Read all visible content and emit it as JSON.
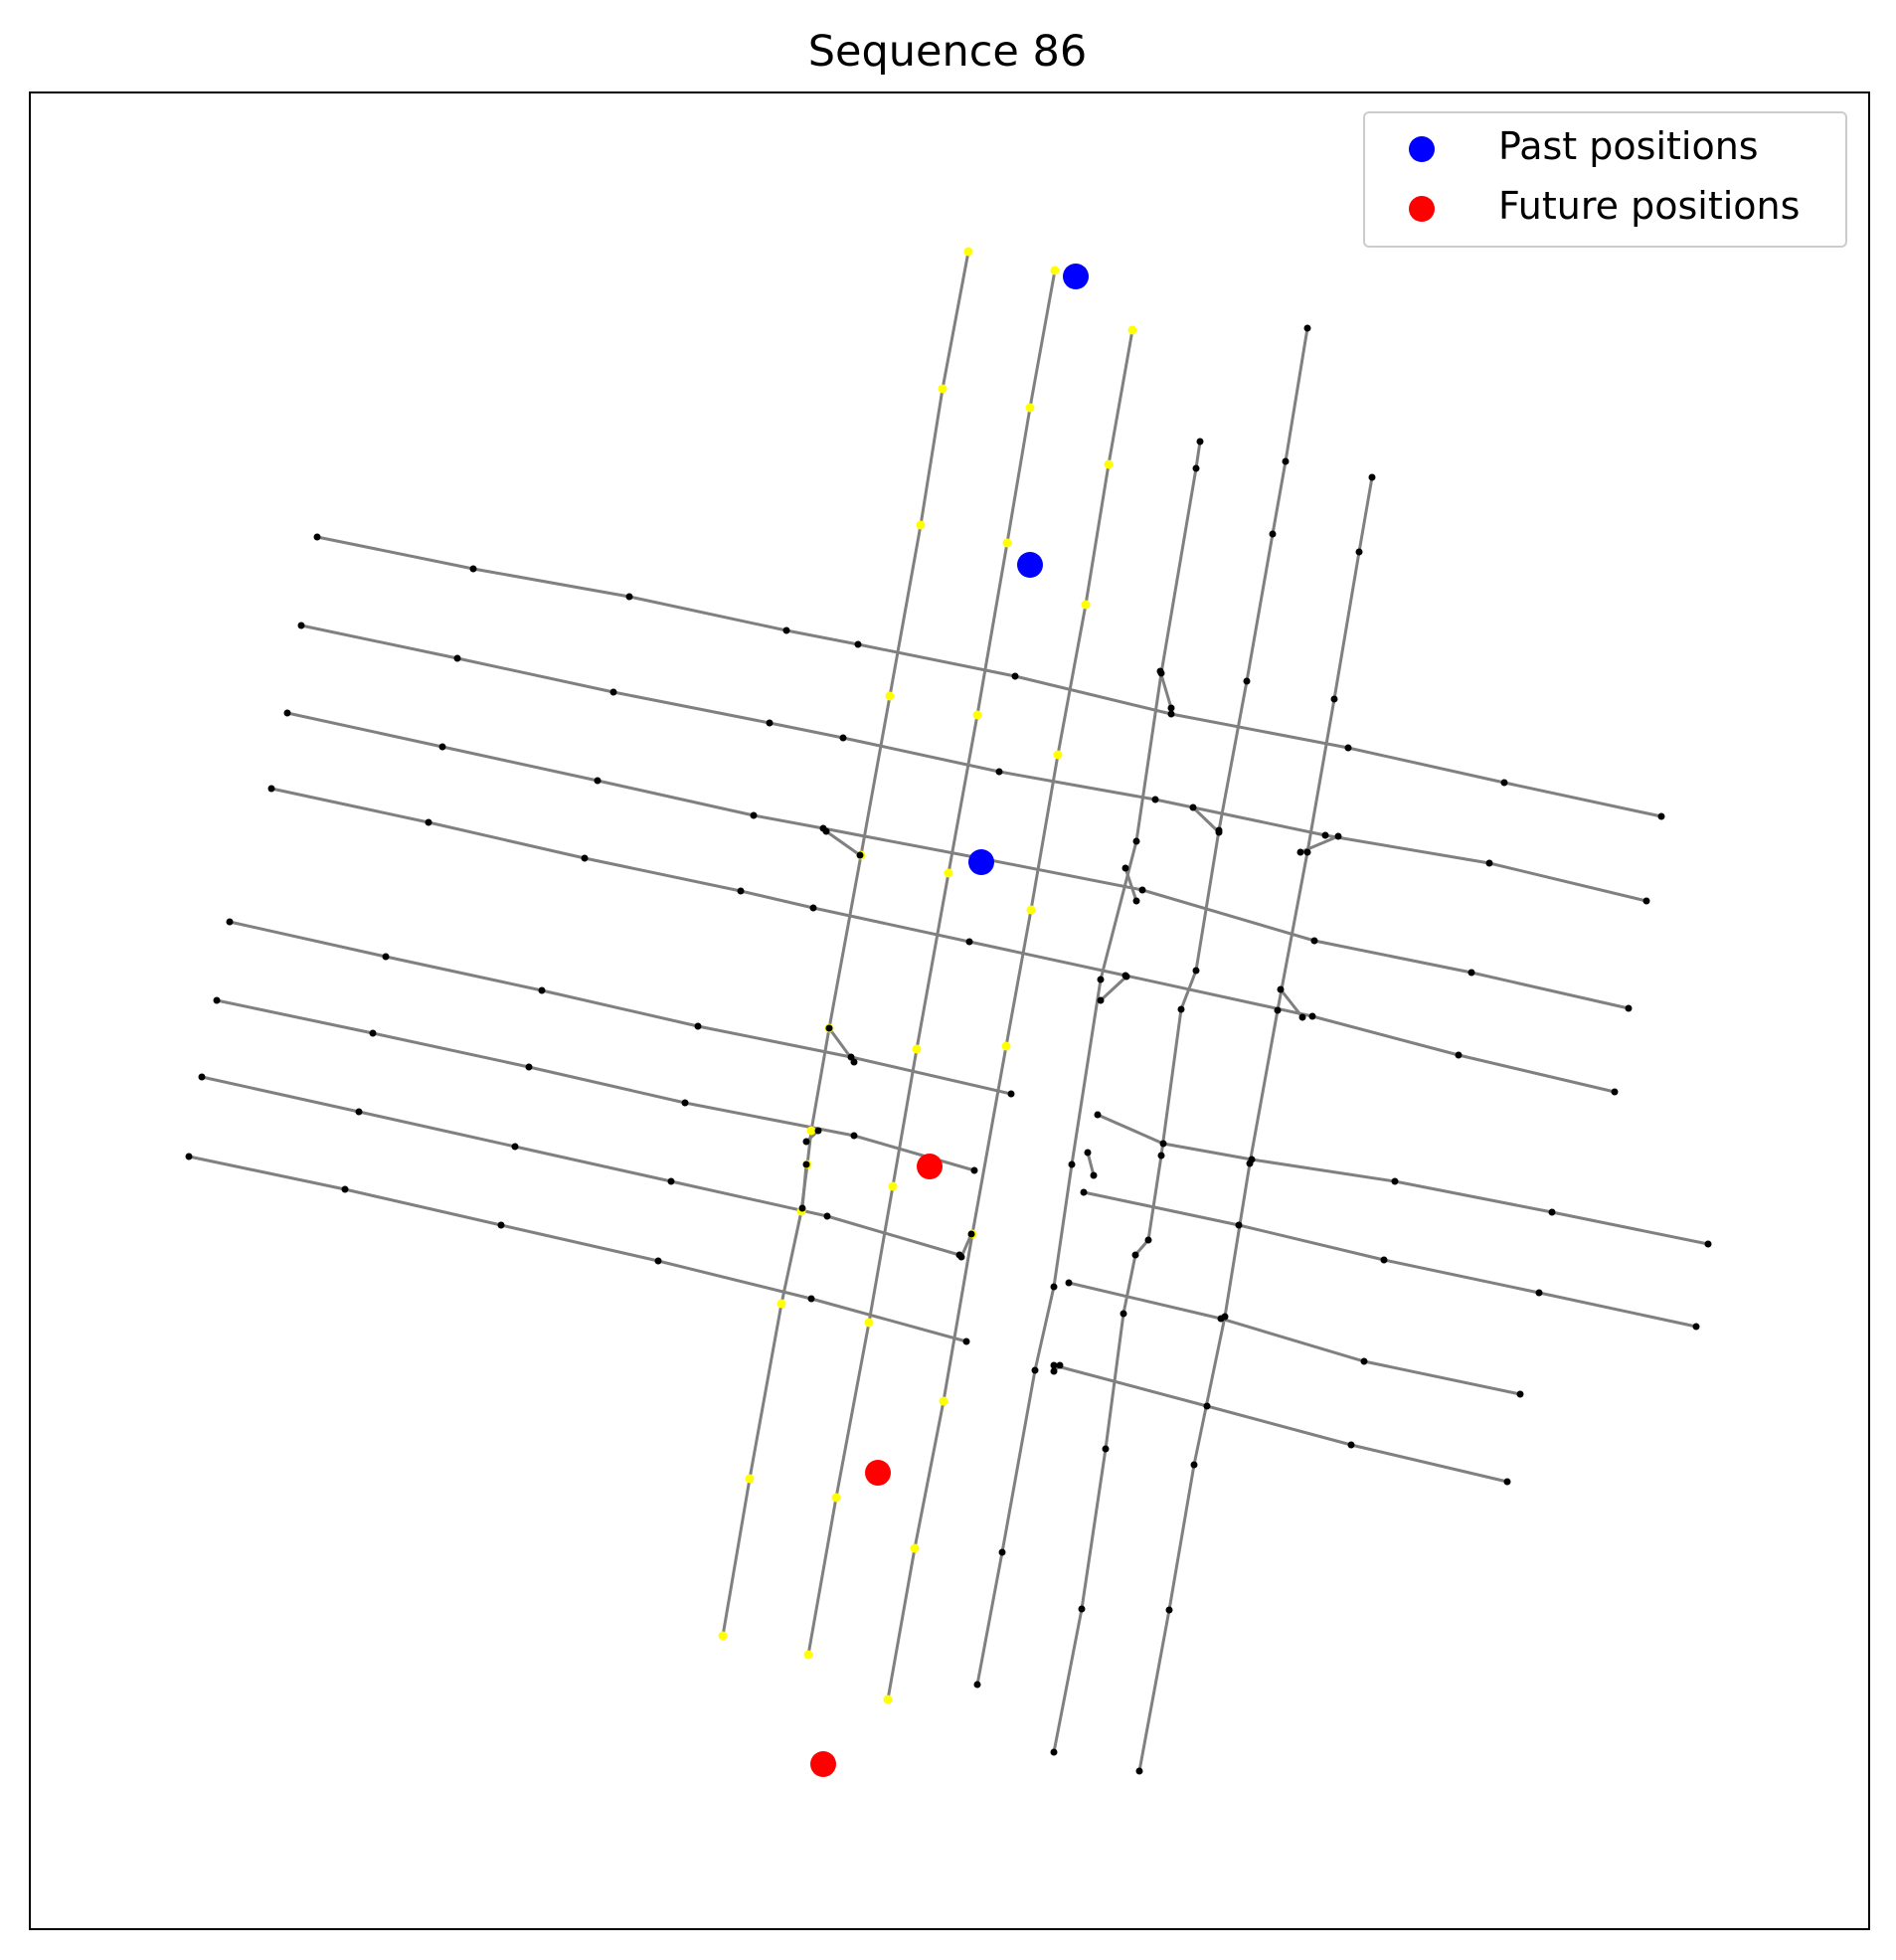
{
  "chart_data": {
    "type": "scatter",
    "title": "Sequence 86",
    "xlabel": "",
    "ylabel": "",
    "grid": false,
    "ticks_visible": false,
    "legend": {
      "placement": "top-right",
      "entries": [
        "Past positions",
        "Future positions"
      ]
    },
    "colors": {
      "past": "#0000ff",
      "future": "#ff0000",
      "lane": "#808080",
      "node": "#000000",
      "highlight_node": "#ffff00",
      "frame": "#000000"
    },
    "series": [
      {
        "name": "Past positions",
        "color": "#0000ff",
        "points": [
          [
            1082,
            278
          ],
          [
            1036,
            568
          ],
          [
            987,
            867
          ]
        ]
      },
      {
        "name": "Future positions",
        "color": "#ff0000",
        "points": [
          [
            935,
            1173
          ],
          [
            883,
            1481
          ],
          [
            828,
            1774
          ]
        ]
      }
    ],
    "lanes": [
      {
        "highlight": true,
        "points": [
          [
            974,
            253
          ],
          [
            948,
            391
          ],
          [
            926,
            528
          ],
          [
            895,
            700
          ],
          [
            866,
            860
          ],
          [
            834,
            1034
          ],
          [
            816,
            1137
          ],
          [
            812,
            1171
          ],
          [
            806,
            1218
          ],
          [
            786,
            1311
          ],
          [
            754,
            1487
          ],
          [
            727,
            1645
          ]
        ]
      },
      {
        "highlight": true,
        "points": [
          [
            1061,
            272
          ],
          [
            1036,
            410
          ],
          [
            1013,
            546
          ],
          [
            983,
            719
          ],
          [
            954,
            878
          ],
          [
            922,
            1055
          ],
          [
            898,
            1193
          ],
          [
            874,
            1330
          ],
          [
            841,
            1506
          ],
          [
            813,
            1664
          ]
        ]
      },
      {
        "highlight": true,
        "points": [
          [
            1139,
            332
          ],
          [
            1115,
            467
          ],
          [
            1092,
            608
          ],
          [
            1064,
            759
          ],
          [
            1037,
            915
          ],
          [
            1012,
            1052
          ],
          [
            978,
            1241
          ],
          [
            949,
            1409
          ],
          [
            920,
            1557
          ],
          [
            893,
            1709
          ]
        ]
      },
      {
        "points": [
          [
            1207,
            444
          ],
          [
            1203,
            471
          ],
          [
            1168,
            677
          ],
          [
            1143,
            846
          ],
          [
            1107,
            985
          ],
          [
            1078,
            1171
          ],
          [
            1060,
            1294
          ],
          [
            1041,
            1378
          ],
          [
            1008,
            1561
          ],
          [
            983,
            1694
          ]
        ]
      },
      {
        "points": [
          [
            1315,
            330
          ],
          [
            1293,
            464
          ],
          [
            1280,
            537
          ],
          [
            1254,
            685
          ],
          [
            1226,
            835
          ],
          [
            1203,
            976
          ],
          [
            1188,
            1015
          ],
          [
            1168,
            1162
          ],
          [
            1155,
            1247
          ],
          [
            1142,
            1262
          ],
          [
            1130,
            1321
          ],
          [
            1112,
            1457
          ],
          [
            1088,
            1618
          ],
          [
            1060,
            1762
          ]
        ]
      },
      {
        "points": [
          [
            1380,
            480
          ],
          [
            1367,
            555
          ],
          [
            1342,
            703
          ],
          [
            1315,
            857
          ],
          [
            1285,
            1016
          ],
          [
            1257,
            1170
          ],
          [
            1232,
            1324
          ],
          [
            1201,
            1473
          ],
          [
            1176,
            1619
          ],
          [
            1146,
            1781
          ]
        ]
      },
      {
        "points": [
          [
            319,
            540
          ],
          [
            476,
            572
          ],
          [
            633,
            600
          ],
          [
            791,
            634
          ],
          [
            863,
            648
          ],
          [
            1021,
            680
          ],
          [
            1178,
            718
          ],
          [
            1356,
            752
          ],
          [
            1513,
            787
          ],
          [
            1671,
            821
          ]
        ]
      },
      {
        "points": [
          [
            303,
            629
          ],
          [
            460,
            662
          ],
          [
            617,
            696
          ],
          [
            774,
            727
          ],
          [
            848,
            742
          ],
          [
            1005,
            776
          ],
          [
            1162,
            804
          ],
          [
            1333,
            840
          ],
          [
            1498,
            868
          ],
          [
            1656,
            906
          ]
        ]
      },
      {
        "points": [
          [
            289,
            717
          ],
          [
            445,
            751
          ],
          [
            601,
            785
          ],
          [
            758,
            820
          ],
          [
            828,
            833
          ],
          [
            991,
            864
          ],
          [
            1149,
            895
          ],
          [
            1322,
            946
          ],
          [
            1480,
            978
          ],
          [
            1638,
            1014
          ]
        ]
      },
      {
        "points": [
          [
            273,
            793
          ],
          [
            431,
            827
          ],
          [
            588,
            863
          ],
          [
            745,
            896
          ],
          [
            818,
            913
          ],
          [
            975,
            947
          ],
          [
            1132,
            981
          ],
          [
            1320,
            1022
          ],
          [
            1467,
            1061
          ],
          [
            1624,
            1098
          ]
        ]
      },
      {
        "points": [
          [
            231,
            927
          ],
          [
            388,
            962
          ],
          [
            545,
            996
          ],
          [
            702,
            1032
          ],
          [
            856,
            1063
          ],
          [
            1017,
            1100
          ]
        ]
      },
      {
        "points": [
          [
            218,
            1006
          ],
          [
            375,
            1039
          ],
          [
            532,
            1073
          ],
          [
            689,
            1109
          ],
          [
            859,
            1142
          ],
          [
            980,
            1177
          ]
        ]
      },
      {
        "points": [
          [
            203,
            1083
          ],
          [
            361,
            1118
          ],
          [
            518,
            1153
          ],
          [
            675,
            1188
          ],
          [
            832,
            1223
          ],
          [
            965,
            1262
          ]
        ]
      },
      {
        "points": [
          [
            190,
            1163
          ],
          [
            347,
            1196
          ],
          [
            504,
            1232
          ],
          [
            662,
            1268
          ],
          [
            816,
            1306
          ],
          [
            972,
            1349
          ]
        ]
      },
      {
        "points": [
          [
            1104,
            1121
          ],
          [
            1170,
            1150
          ],
          [
            1259,
            1166
          ],
          [
            1403,
            1188
          ],
          [
            1561,
            1219
          ],
          [
            1718,
            1251
          ]
        ]
      },
      {
        "points": [
          [
            1090,
            1199
          ],
          [
            1246,
            1232
          ],
          [
            1392,
            1267
          ],
          [
            1548,
            1300
          ],
          [
            1706,
            1334
          ]
        ]
      },
      {
        "points": [
          [
            1075,
            1290
          ],
          [
            1228,
            1326
          ],
          [
            1372,
            1369
          ],
          [
            1529,
            1402
          ]
        ]
      },
      {
        "points": [
          [
            1060,
            1373
          ],
          [
            1214,
            1414
          ],
          [
            1359,
            1453
          ],
          [
            1516,
            1490
          ]
        ]
      }
    ],
    "connectors": [
      [
        [
          1167,
          675
        ],
        [
          1178,
          712
        ]
      ],
      [
        [
          1200,
          812
        ],
        [
          1226,
          837
        ]
      ],
      [
        [
          1308,
          857
        ],
        [
          1346,
          841
        ]
      ],
      [
        [
          1132,
          873
        ],
        [
          1143,
          906
        ]
      ],
      [
        [
          831,
          836
        ],
        [
          865,
          860
        ]
      ],
      [
        [
          1133,
          982
        ],
        [
          1107,
          1006
        ]
      ],
      [
        [
          1288,
          995
        ],
        [
          1310,
          1023
        ]
      ],
      [
        [
          834,
          1034
        ],
        [
          859,
          1068
        ]
      ],
      [
        [
          811,
          1148
        ],
        [
          823,
          1137
        ]
      ],
      [
        [
          811,
          1171
        ],
        [
          807,
          1215
        ]
      ],
      [
        [
          1094,
          1159
        ],
        [
          1100,
          1182
        ]
      ],
      [
        [
          967,
          1264
        ],
        [
          977,
          1241
        ]
      ],
      [
        [
          1066,
          1373
        ],
        [
          1060,
          1379
        ]
      ]
    ]
  }
}
